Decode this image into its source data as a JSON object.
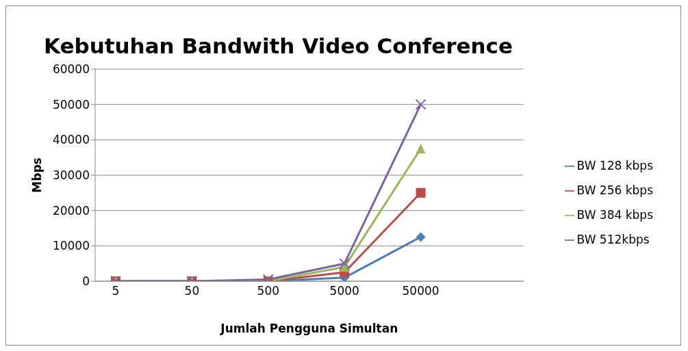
{
  "chart_data": {
    "type": "line",
    "title": "Kebutuhan Bandwith Video Conference",
    "xlabel": "Jumlah Pengguna Simultan",
    "ylabel": "Mbps",
    "categories": [
      "5",
      "50",
      "500",
      "5000",
      "50000"
    ],
    "series": [
      {
        "name": "BW 128 kbps",
        "color": "#4a7ebb",
        "marker": "diamond",
        "values": [
          0,
          0,
          0,
          1000,
          12500
        ]
      },
      {
        "name": "BW 256 kbps",
        "color": "#be4b48",
        "marker": "square",
        "values": [
          0,
          0,
          0,
          2500,
          25000
        ]
      },
      {
        "name": "BW 384 kbps",
        "color": "#98b954",
        "marker": "triangle",
        "values": [
          0,
          0,
          0,
          4000,
          37500
        ]
      },
      {
        "name": "BW 512kbps",
        "color": "#7d60a0",
        "marker": "cross",
        "values": [
          0,
          0,
          500,
          5000,
          50000
        ]
      }
    ],
    "ylim": [
      0,
      60000
    ],
    "yticks": [
      0,
      10000,
      20000,
      30000,
      40000,
      50000,
      60000
    ],
    "grid": "y",
    "legend": "right",
    "line_style": "solid"
  }
}
